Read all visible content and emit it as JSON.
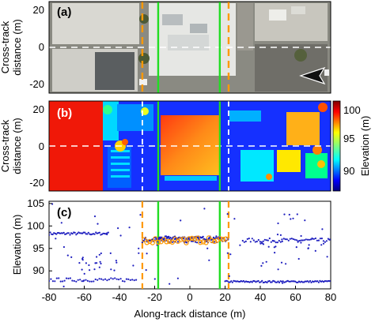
{
  "chart_data": [
    {
      "panel": "a",
      "type": "image",
      "panel_label": "(a)",
      "ylabel": "Cross-track distance (m)",
      "ylabel_lines": [
        "Cross-track",
        "distance (m)"
      ],
      "xlim": [
        -80,
        80
      ],
      "ylim": [
        -25,
        25
      ],
      "yticks": [
        20,
        0,
        -20
      ],
      "tick_labels": [
        "20",
        "0",
        "-20"
      ],
      "content": "aerial orthophoto of rooftops and parking lots",
      "icon": "north-arrow-icon",
      "colors": {
        "green_line": "#22dd22",
        "orange_dash": "#ff9900",
        "white_dash": "#ffffff"
      }
    },
    {
      "panel": "b",
      "type": "heatmap",
      "panel_label": "(b)",
      "ylabel": "Cross-track distance (m)",
      "ylabel_lines": [
        "Cross-track",
        "distance (m)"
      ],
      "xlim": [
        -80,
        80
      ],
      "ylim": [
        -25,
        25
      ],
      "yticks": [
        20,
        0,
        -20
      ],
      "tick_labels": [
        "20",
        "0",
        "-20"
      ],
      "colorbar": {
        "label": "Elevation (m)",
        "range": [
          88,
          101
        ],
        "ticks": [
          100,
          95,
          90
        ],
        "tick_labels": [
          "100",
          "95",
          "90"
        ],
        "colormap": "jet"
      }
    },
    {
      "panel": "c",
      "type": "scatter",
      "panel_label": "(c)",
      "xlabel": "Along-track distance (m)",
      "ylabel": "Elevation (m)",
      "xlim": [
        -80,
        80
      ],
      "ylim": [
        86,
        105.5
      ],
      "xticks": [
        -80,
        -60,
        -40,
        -20,
        0,
        20,
        40,
        60,
        80
      ],
      "xtick_labels": [
        "-80",
        "-60",
        "-40",
        "-20",
        "0",
        "20",
        "40",
        "60",
        "80"
      ],
      "yticks": [
        105,
        100,
        95,
        90
      ],
      "ytick_labels": [
        "105",
        "100",
        "95",
        "90"
      ],
      "vertical_lines": {
        "green_solid": [
          -18,
          17
        ],
        "orange_dashed": [
          -27,
          22
        ]
      },
      "series": [
        {
          "marker": "dot",
          "color": "#1f1fbf",
          "description": "photon returns"
        },
        {
          "marker": "circle",
          "color": "#ff9900",
          "description": "rooftop returns between orange lines",
          "x_range": [
            -27,
            22
          ],
          "y_center": 96.8
        }
      ]
    }
  ]
}
